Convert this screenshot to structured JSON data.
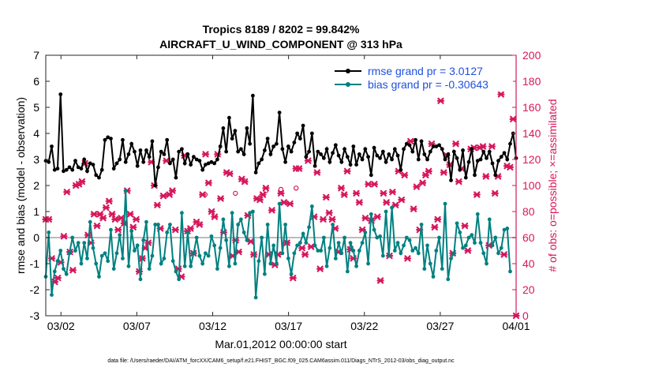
{
  "chart_data": {
    "type": "line",
    "title": "Tropics 8189 / 8202 = 99.842%",
    "subtitle": "AIRCRAFT_U_WIND_COMPONENT @ 313 hPa",
    "xlabel": "Mar.01,2012 00:00:00 start",
    "ylabel": "rmse and bias (model - observation)",
    "ylabel_right": "# of obs: o=possible; ×=assimilated",
    "footer": "data file: /Users/raeder/DAI/ATM_forcXX/CAM6_setup/f.e21.FHIST_BGC.f09_025.CAM6assim.011/Diags_NTrS_2012-03/obs_diag_output.nc",
    "x_range": [
      0,
      31
    ],
    "ylim": [
      -3,
      7
    ],
    "ylim_right": [
      0,
      200
    ],
    "x_ticks": [
      {
        "pos": 1,
        "label": "03/02"
      },
      {
        "pos": 6,
        "label": "03/07"
      },
      {
        "pos": 11,
        "label": "03/12"
      },
      {
        "pos": 16,
        "label": "03/17"
      },
      {
        "pos": 21,
        "label": "03/22"
      },
      {
        "pos": 26,
        "label": "03/27"
      },
      {
        "pos": 31,
        "label": "04/01"
      }
    ],
    "y_ticks": [
      -3,
      -2,
      -1,
      0,
      1,
      2,
      3,
      4,
      5,
      6,
      7
    ],
    "y_ticks_right": [
      0,
      20,
      40,
      60,
      80,
      100,
      120,
      140,
      160,
      180,
      200
    ],
    "colors": {
      "rmse": "#000000",
      "bias": "#008080",
      "obs": "#d6175c",
      "zero_line": "#bbbbbb"
    },
    "legend": {
      "placement": "top-right",
      "rmse": "rmse grand pr = 3.0127",
      "bias": "bias grand pr = -0.30643"
    },
    "series": [
      {
        "name": "rmse",
        "values": [
          2.95,
          2.9,
          3.5,
          2.6,
          2.65,
          5.5,
          2.55,
          2.6,
          2.7,
          2.6,
          2.95,
          2.7,
          2.65,
          3.0,
          2.55,
          2.85,
          2.8,
          2.4,
          2.3,
          2.6,
          3.75,
          3.85,
          3.8,
          2.65,
          2.85,
          3.0,
          3.75,
          2.9,
          3.2,
          3.6,
          3.3,
          2.75,
          3.35,
          2.9,
          3.35,
          3.1,
          3.7,
          2.0,
          2.7,
          3.3,
          3.2,
          3.75,
          2.85,
          3.0,
          2.3,
          3.3,
          3.4,
          2.85,
          3.2,
          2.8,
          3.1,
          3.0,
          2.95,
          2.6,
          2.8,
          2.85,
          2.9,
          2.85,
          3.0,
          3.5,
          4.2,
          3.3,
          4.6,
          3.8,
          4.1,
          3.3,
          3.4,
          3.2,
          4.2,
          3.6,
          5.45,
          2.5,
          2.85,
          3.0,
          3.35,
          3.8,
          3.2,
          3.5,
          3.6,
          4.8,
          3.4,
          2.9,
          3.5,
          3.3,
          3.65,
          4.0,
          3.8,
          4.3,
          3.1,
          3.3,
          4.0,
          2.75,
          3.3,
          3.2,
          3.05,
          3.4,
          2.9,
          3.25,
          3.55,
          3.15,
          2.9,
          3.4,
          3.1,
          2.8,
          3.5,
          2.8,
          3.2,
          3.0,
          3.4,
          3.1,
          2.4,
          3.45,
          3.15,
          3.05,
          3.3,
          2.9,
          3.2,
          3.0,
          3.4,
          3.15,
          2.6,
          3.4,
          3.6,
          3.55,
          3.3,
          3.75,
          3.0,
          3.7,
          3.2,
          3.0,
          3.3,
          3.5,
          3.5,
          3.55,
          3.4,
          3.0,
          3.2,
          2.2,
          3.3,
          3.05,
          2.6,
          3.35,
          2.3,
          2.9,
          3.4,
          2.4,
          2.95,
          3.0,
          3.3,
          3.05,
          3.3,
          2.85,
          2.4,
          2.95,
          3.1,
          3.25,
          3.0,
          3.6,
          4.0,
          3.05
        ]
      },
      {
        "name": "bias",
        "values": [
          -1.5,
          0.2,
          -2.2,
          -1.3,
          -0.9,
          -0.5,
          -1.2,
          -1.4,
          -0.6,
          0.0,
          -0.5,
          -0.2,
          -1.0,
          -0.2,
          -0.8,
          0.6,
          -0.4,
          -1.0,
          -1.5,
          -0.7,
          -0.6,
          -0.9,
          0.3,
          -1.2,
          -0.6,
          0.1,
          -0.8,
          1.8,
          -1.1,
          0.25,
          -0.5,
          -0.3,
          -1.6,
          -0.1,
          0.6,
          -1.2,
          -0.7,
          0.5,
          0.5,
          -1.0,
          -0.8,
          0.2,
          0.5,
          -0.9,
          -1.3,
          -1.6,
          0.95,
          -1.1,
          0.2,
          -1.1,
          -0.6,
          0.0,
          -0.7,
          -1.0,
          -0.6,
          -0.7,
          0.05,
          -0.3,
          -1.2,
          -0.4,
          0.7,
          -0.1,
          -1.1,
          0.95,
          -1.0,
          0.5,
          0.7,
          0.2,
          -0.1,
          0.95,
          1.0,
          -2.3,
          -0.9,
          0.0,
          -1.4,
          0.5,
          -1.0,
          -0.3,
          -1.0,
          1.3,
          -0.6,
          0.5,
          -0.8,
          -1.4,
          -0.6,
          -0.3,
          -0.2,
          0.15,
          -0.2,
          0.4,
          1.2,
          -0.3,
          -0.5,
          -0.5,
          0.0,
          -1.1,
          -0.4,
          0.5,
          -0.8,
          -0.2,
          -0.6,
          0.0,
          -1.3,
          -0.2,
          -0.5,
          -1.1,
          -0.5,
          -0.2,
          0.2,
          -1.0,
          0.9,
          0.3,
          0.0,
          0.05,
          -0.7,
          1.0,
          -0.7,
          1.15,
          -0.5,
          -0.2,
          -0.6,
          -0.3,
          0.0,
          -0.1,
          -0.5,
          -0.4,
          -0.6,
          0.5,
          -1.2,
          -0.3,
          -1.0,
          -1.5,
          -0.5,
          0.0,
          -1.2,
          1.3,
          -1.6,
          -0.8,
          -0.6,
          0.55,
          0.2,
          -0.4,
          -0.3,
          0.0,
          0.1,
          -0.2,
          0.9,
          -0.2,
          -0.6,
          -1.0,
          0.7,
          -0.3,
          0.0,
          -0.6,
          -0.4,
          0.3,
          0.35,
          -1.3
        ]
      },
      {
        "name": "obs assimilated",
        "values": [
          74,
          74,
          44,
          26,
          29,
          41,
          61,
          95,
          49,
          35,
          100,
          101,
          103,
          117,
          62,
          56,
          78,
          69,
          78,
          75,
          83,
          88,
          78,
          74,
          66,
          75,
          71,
          96,
          78,
          68,
          74,
          34,
          44,
          52,
          56,
          118,
          100,
          85,
          67,
          92,
          119,
          93,
          96,
          66,
          36,
          30,
          123,
          65,
          67,
          48,
          72,
          70,
          93,
          124,
          102,
          80,
          76,
          124,
          90,
          64,
          110,
          109,
          46,
          58,
          49,
          105,
          103,
          77,
          57,
          47,
          90,
          89,
          93,
          98,
          47,
          81,
          39,
          47,
          94,
          87,
          56,
          86,
          29,
          113,
          113,
          52,
          47,
          119,
          53,
          76,
          110,
          36,
          74,
          91,
          79,
          74,
          67,
          49,
          98,
          93,
          111,
          51,
          44,
          94,
          87,
          66,
          75,
          101,
          73,
          101,
          76,
          27,
          94,
          87,
          46,
          95,
          85,
          111,
          89,
          108,
          44,
          134,
          82,
          99,
          66,
          102,
          108,
          111,
          132,
          68,
          74,
          165,
          110,
          123,
          116,
          48,
          132,
          103,
          113,
          69,
          50,
          128,
          129,
          93,
          129,
          130,
          107,
          54,
          130,
          94,
          107,
          170,
          47,
          115,
          114,
          151,
          0
        ]
      },
      {
        "name": "obs possible",
        "points": [
          [
            10.5,
            93
          ],
          [
            12.5,
            94
          ],
          [
            14.5,
            96
          ],
          [
            15.5,
            97
          ],
          [
            16.5,
            98
          ]
        ]
      }
    ]
  }
}
